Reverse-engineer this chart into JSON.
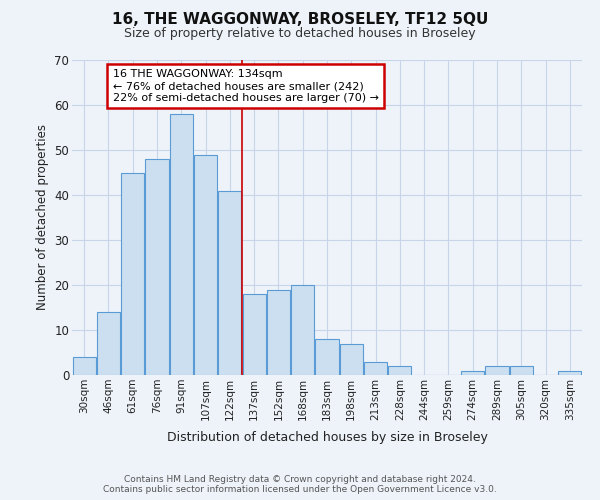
{
  "title": "16, THE WAGGONWAY, BROSELEY, TF12 5QU",
  "subtitle": "Size of property relative to detached houses in Broseley",
  "xlabel": "Distribution of detached houses by size in Broseley",
  "ylabel": "Number of detached properties",
  "bar_color": "#ccdff0",
  "bar_edge_color": "#5b9bd5",
  "background_color": "#eef3fa",
  "grid_color": "#c8d4e8",
  "bin_labels": [
    "30sqm",
    "46sqm",
    "61sqm",
    "76sqm",
    "91sqm",
    "107sqm",
    "122sqm",
    "137sqm",
    "152sqm",
    "168sqm",
    "183sqm",
    "198sqm",
    "213sqm",
    "228sqm",
    "244sqm",
    "259sqm",
    "274sqm",
    "289sqm",
    "305sqm",
    "320sqm",
    "335sqm"
  ],
  "bin_values": [
    4,
    14,
    45,
    48,
    58,
    49,
    41,
    18,
    19,
    20,
    8,
    7,
    3,
    2,
    0,
    0,
    1,
    2,
    2,
    0,
    1
  ],
  "marker_bin_index": 7,
  "ylim": [
    0,
    70
  ],
  "yticks": [
    0,
    10,
    20,
    30,
    40,
    50,
    60,
    70
  ],
  "annotation_title": "16 THE WAGGONWAY: 134sqm",
  "annotation_line1": "← 76% of detached houses are smaller (242)",
  "annotation_line2": "22% of semi-detached houses are larger (70) →",
  "marker_line_color": "#cc0000",
  "annotation_box_edge_color": "#cc0000",
  "footer_line1": "Contains HM Land Registry data © Crown copyright and database right 2024.",
  "footer_line2": "Contains public sector information licensed under the Open Government Licence v3.0."
}
